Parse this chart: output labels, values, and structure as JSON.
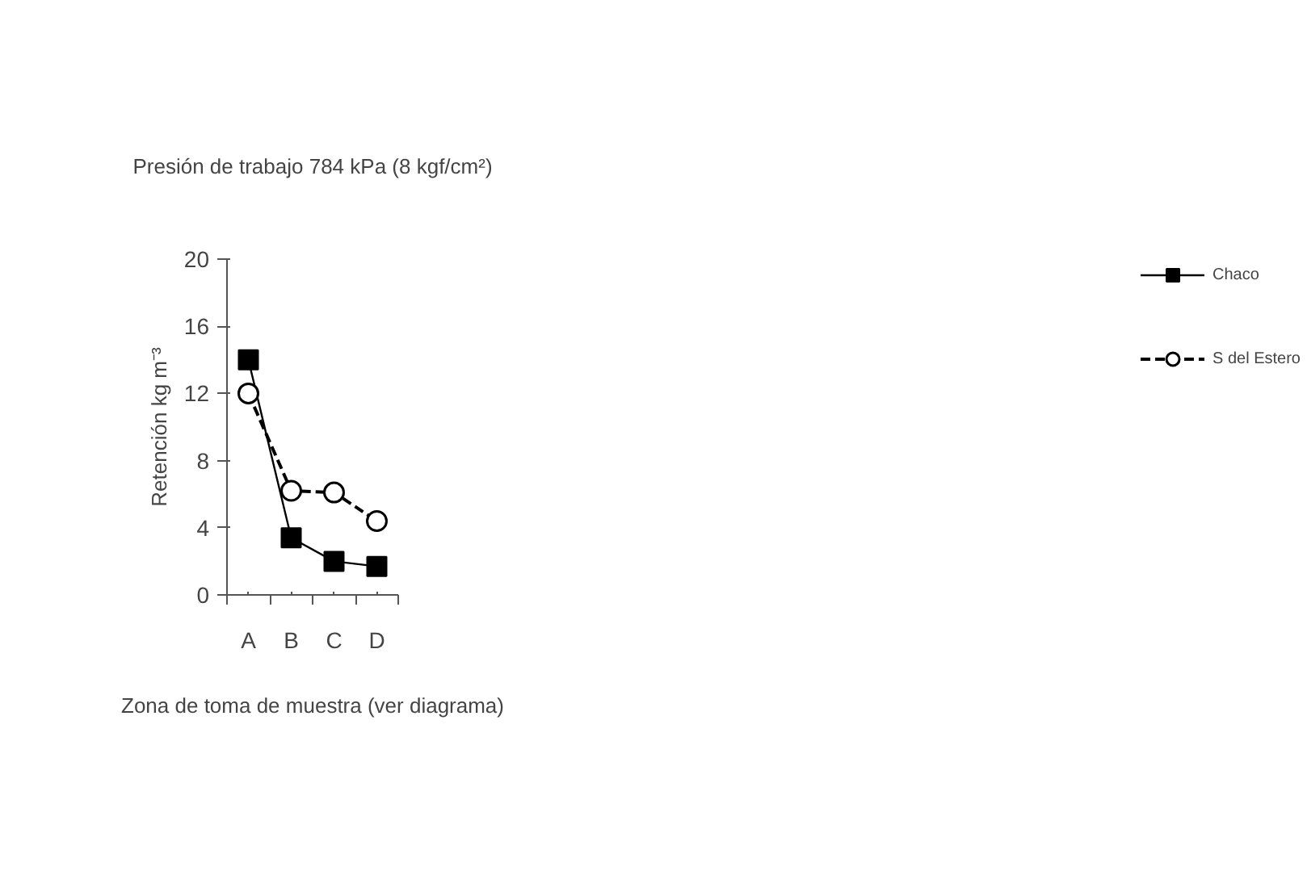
{
  "chart_data": {
    "type": "line",
    "title": "Presión de trabajo 784 kPa (8 kgf/cm²)",
    "xlabel": "Zona de toma de muestra (ver diagrama)",
    "ylabel": "Retención kg m⁻³",
    "categories": [
      "A",
      "B",
      "C",
      "D"
    ],
    "series": [
      {
        "name": "Chaco",
        "color": "#000000",
        "values": [
          14.0,
          3.4,
          2.0,
          1.7
        ],
        "marker": "square",
        "line_style": "solid"
      },
      {
        "name": "S del Estero",
        "color": "#000000",
        "values": [
          12.0,
          6.2,
          6.1,
          4.4
        ],
        "marker": "circle",
        "line_style": "dashed"
      }
    ],
    "ylim": [
      0,
      20
    ],
    "yticks": [
      0,
      4,
      8,
      12,
      16,
      20
    ],
    "grid": false,
    "legend": "right"
  }
}
